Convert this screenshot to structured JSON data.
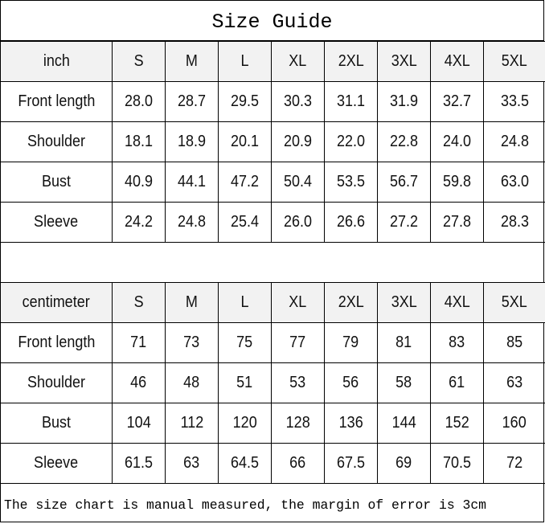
{
  "title": "Size Guide",
  "sizes": [
    "S",
    "M",
    "L",
    "XL",
    "2XL",
    "3XL",
    "4XL",
    "5XL"
  ],
  "tables": [
    {
      "unit": "inch",
      "rows": [
        {
          "label": "Front length",
          "values": [
            "28.0",
            "28.7",
            "29.5",
            "30.3",
            "31.1",
            "31.9",
            "32.7",
            "33.5"
          ]
        },
        {
          "label": "Shoulder",
          "values": [
            "18.1",
            "18.9",
            "20.1",
            "20.9",
            "22.0",
            "22.8",
            "24.0",
            "24.8"
          ]
        },
        {
          "label": "Bust",
          "values": [
            "40.9",
            "44.1",
            "47.2",
            "50.4",
            "53.5",
            "56.7",
            "59.8",
            "63.0"
          ]
        },
        {
          "label": "Sleeve",
          "values": [
            "24.2",
            "24.8",
            "25.4",
            "26.0",
            "26.6",
            "27.2",
            "27.8",
            "28.3"
          ]
        }
      ]
    },
    {
      "unit": "centimeter",
      "rows": [
        {
          "label": "Front length",
          "values": [
            "71",
            "73",
            "75",
            "77",
            "79",
            "81",
            "83",
            "85"
          ]
        },
        {
          "label": "Shoulder",
          "values": [
            "46",
            "48",
            "51",
            "53",
            "56",
            "58",
            "61",
            "63"
          ]
        },
        {
          "label": "Bust",
          "values": [
            "104",
            "112",
            "120",
            "128",
            "136",
            "144",
            "152",
            "160"
          ]
        },
        {
          "label": "Sleeve",
          "values": [
            "61.5",
            "63",
            "64.5",
            "66",
            "67.5",
            "69",
            "70.5",
            "72"
          ]
        }
      ]
    }
  ],
  "note": "The size chart is manual measured, the margin of error is 3cm",
  "colors": {
    "header_bg": "#f2f2f2",
    "border": "#000000"
  }
}
